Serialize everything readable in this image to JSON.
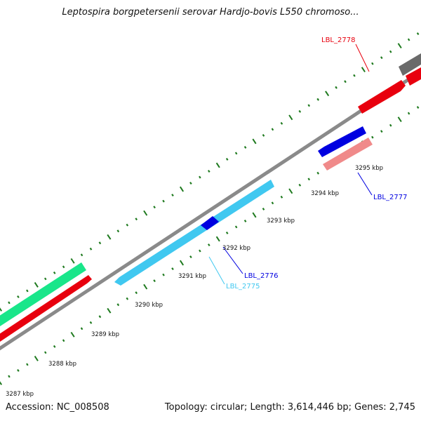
{
  "title": "Leptospira borgpetersenii serovar Hardjo-bovis L550 chromoso...",
  "footer": {
    "accession": "Accession: NC_008508",
    "stats": "Topology: circular; Length: 3,614,446 bp; Genes: 2,745"
  },
  "colors": {
    "backbone": "#8a8a8a",
    "tick": "#1f7a1f",
    "gene_red": "#e8000e",
    "gene_green": "#19e68a",
    "gene_cyan": "#40c8f0",
    "gene_blue": "#0000e0",
    "gene_pink": "#f08a8a",
    "gene_gray": "#6a6a6a"
  },
  "scale": {
    "ticks": [
      {
        "label": "3287 kbp"
      },
      {
        "label": "3288 kbp"
      },
      {
        "label": "3289 kbp"
      },
      {
        "label": "3290 kbp"
      },
      {
        "label": "3291 kbp"
      },
      {
        "label": "3292 kbp"
      },
      {
        "label": "3293 kbp"
      },
      {
        "label": "3294 kbp"
      },
      {
        "label": "3295 kbp"
      }
    ]
  },
  "genes": {
    "labels": [
      {
        "text": "LBL_2778",
        "color": "#e8000e"
      },
      {
        "text": "LBL_2777",
        "color": "#0000e0"
      },
      {
        "text": "LBL_2776",
        "color": "#0000e0"
      },
      {
        "text": "LBL_2775",
        "color": "#40c8f0"
      }
    ]
  }
}
